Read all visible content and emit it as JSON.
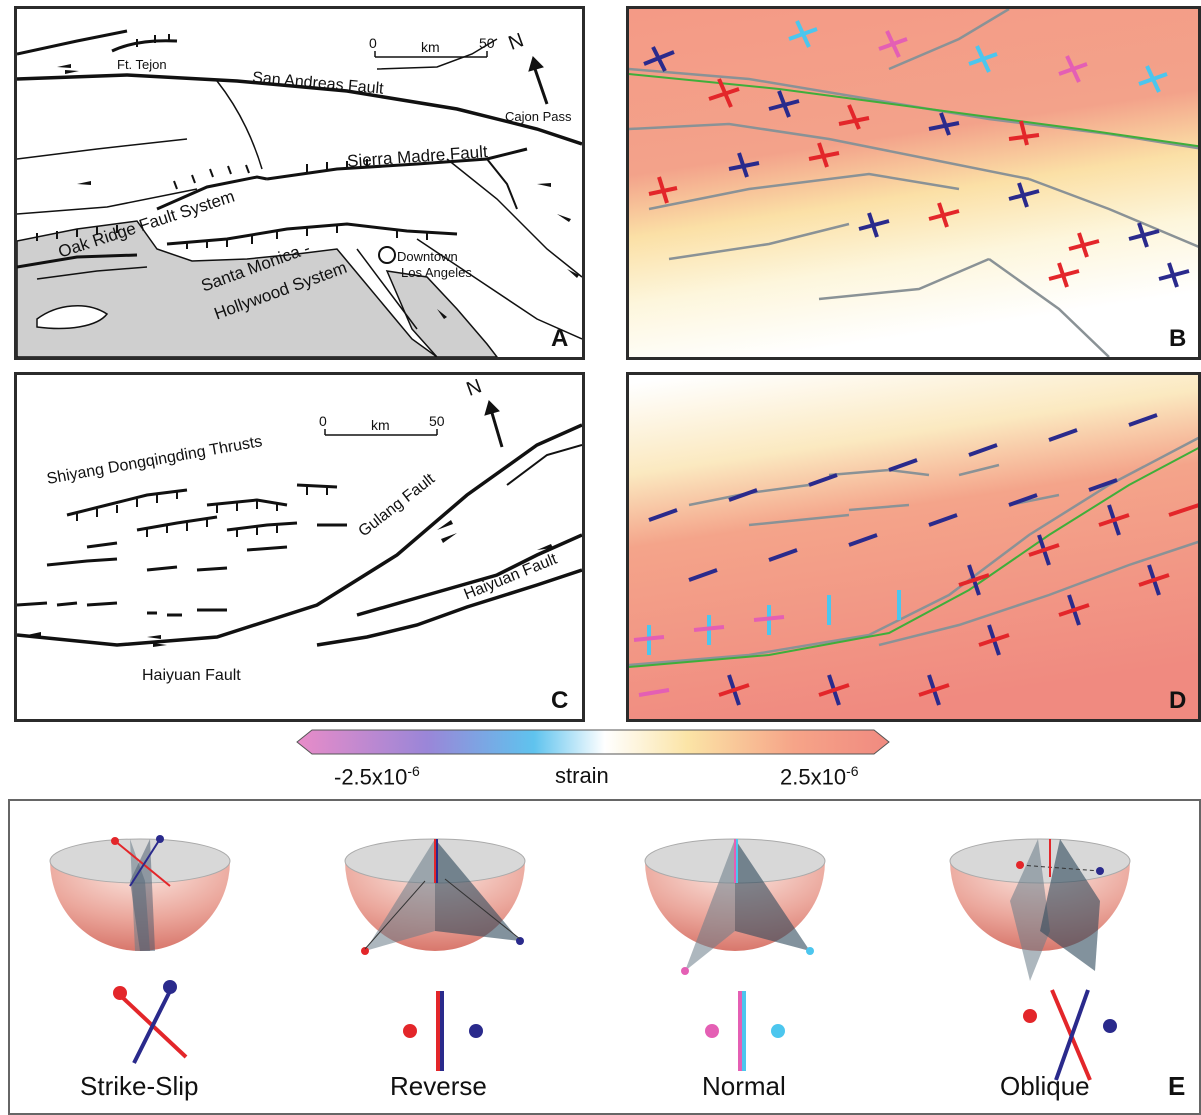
{
  "panels": {
    "a": {
      "label": "A",
      "scale_zero": "0",
      "scale_unit": "km",
      "scale_max": "50",
      "north": "N",
      "names": {
        "ft_tejon": "Ft. Tejon",
        "san_andreas": "San Andreas Fault",
        "cajon_pass": "Cajon Pass",
        "sierra_madre": "Sierra Madre Fault",
        "oak_ridge": "Oak Ridge Fault System",
        "santa_monica": "Santa Monica -",
        "hollywood": "Hollywood System",
        "downtown": "Downtown",
        "los_angeles": "Los Angeles"
      }
    },
    "b": {
      "label": "B"
    },
    "c": {
      "label": "C",
      "scale_zero": "0",
      "scale_unit": "km",
      "scale_max": "50",
      "north": "N",
      "names": {
        "shiyang": "Shiyang Dongqingding Thrusts",
        "gulang": "Gulang Fault",
        "haiyuan_east": "Haiyuan Fault",
        "haiyuan_west": "Haiyuan Fault"
      }
    },
    "d": {
      "label": "D"
    }
  },
  "colorbar": {
    "min_base": "-2.5x10",
    "min_exp": "-6",
    "title": "strain",
    "max_base": "2.5x10",
    "max_exp": "-6",
    "colors": [
      "#e88cc8",
      "#9a86d8",
      "#5fc3ee",
      "#ffffff",
      "#fbe4a6",
      "#f6a488",
      "#f08a80"
    ]
  },
  "mechanisms": {
    "label": "E",
    "items": [
      {
        "name": "Strike-Slip"
      },
      {
        "name": "Reverse"
      },
      {
        "name": "Normal"
      },
      {
        "name": "Oblique"
      }
    ]
  },
  "colors": {
    "extension_red": "#e3262a",
    "compression_blue": "#2a2a8c",
    "pink": "#e45fb4",
    "cyan": "#4cc6ee",
    "fault_gray": "#7f8a8e",
    "green_fault": "#3fae3a"
  }
}
